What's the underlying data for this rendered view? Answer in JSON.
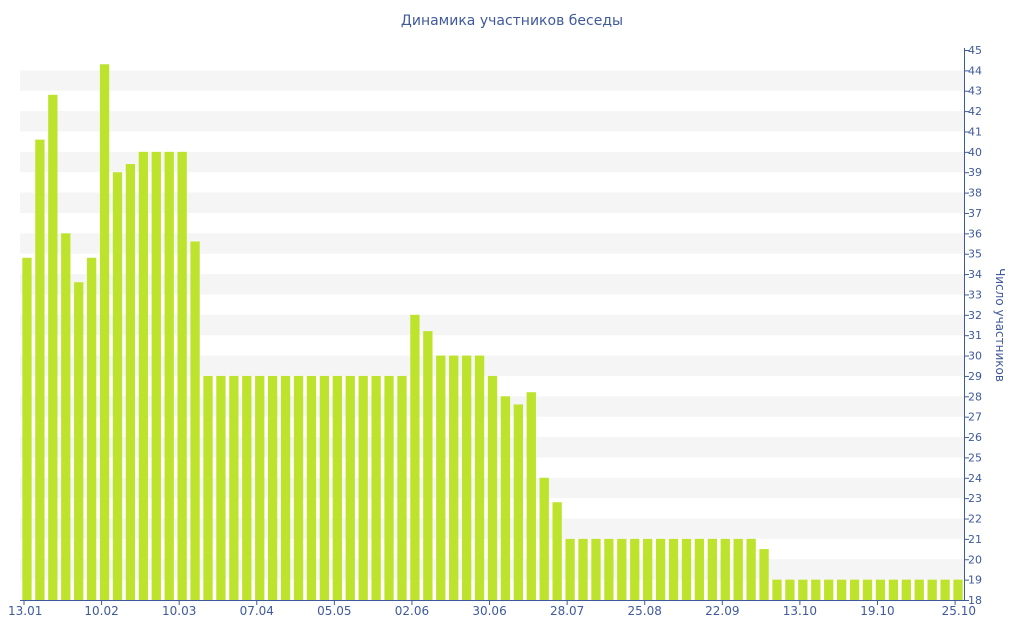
{
  "chart_data": {
    "type": "bar",
    "title": "Динамика участников беседы",
    "ylabel": "Число участников",
    "xlabel": "",
    "ylim": [
      18,
      45
    ],
    "y_axis_position": "right",
    "bar_color": "#bde32c",
    "band_color": "#f5f5f5",
    "axis_color": "#3f5a9c",
    "x_tick_labels": [
      {
        "label": "13.01",
        "index": 0
      },
      {
        "label": "10.02",
        "index": 6
      },
      {
        "label": "10.03",
        "index": 12
      },
      {
        "label": "07.04",
        "index": 18
      },
      {
        "label": "05.05",
        "index": 24
      },
      {
        "label": "02.06",
        "index": 30
      },
      {
        "label": "30.06",
        "index": 36
      },
      {
        "label": "28.07",
        "index": 42
      },
      {
        "label": "25.08",
        "index": 48
      },
      {
        "label": "22.09",
        "index": 54
      },
      {
        "label": "13.10",
        "index": 60
      },
      {
        "label": "19.10",
        "index": 66
      },
      {
        "label": "25.10",
        "index": 72
      }
    ],
    "values": [
      34.8,
      40.6,
      42.8,
      36.0,
      33.6,
      34.8,
      44.3,
      39.0,
      39.4,
      40.0,
      40.0,
      40.0,
      40.0,
      35.6,
      29,
      29,
      29,
      29,
      29,
      29,
      29,
      29,
      29,
      29,
      29,
      29,
      29,
      29,
      29,
      29,
      32.0,
      31.2,
      30,
      30,
      30,
      30,
      29.0,
      28.0,
      27.6,
      28.2,
      24.0,
      22.8,
      21,
      21,
      21,
      21,
      21,
      21,
      21,
      21,
      21,
      21,
      21,
      21,
      21,
      21,
      21,
      20.5,
      19,
      19,
      19,
      19,
      19,
      19,
      19,
      19,
      19,
      19,
      19,
      19,
      19,
      19,
      19
    ]
  }
}
